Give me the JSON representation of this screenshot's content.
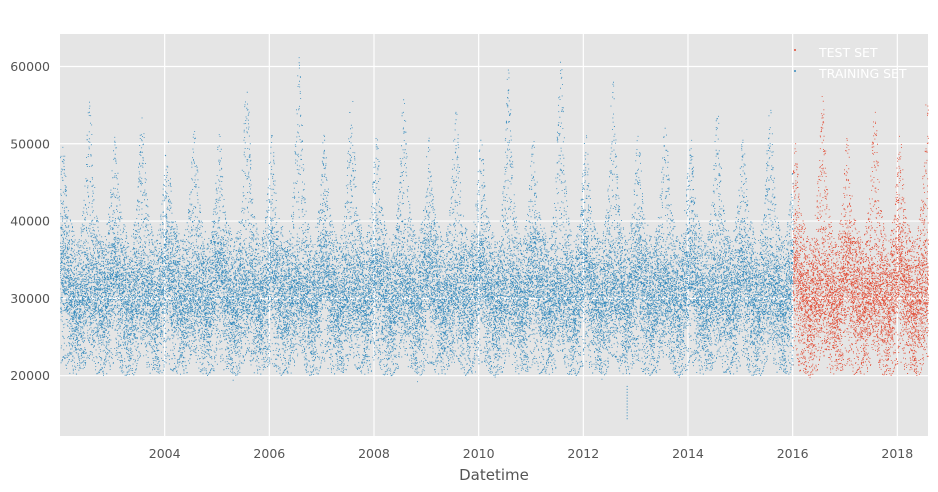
{
  "chart_data": {
    "type": "scatter",
    "title": "",
    "xlabel": "Datetime",
    "ylabel": "",
    "x_range": [
      "2002-01-01",
      "2018-08-03"
    ],
    "ylim": [
      12200,
      64200
    ],
    "x_ticks": [
      "2004",
      "2006",
      "2008",
      "2010",
      "2012",
      "2014",
      "2016",
      "2018"
    ],
    "y_ticks": [
      "20000",
      "30000",
      "40000",
      "50000",
      "60000"
    ],
    "grid": true,
    "legend_position": "top-right",
    "series": [
      {
        "name": "TEST SET",
        "color": "#e24a33",
        "x_range": [
          "2016-01-01",
          "2018-08-03"
        ],
        "approx_y_range": [
          19500,
          56500
        ]
      },
      {
        "name": "TRAINING SET",
        "color": "#348abd",
        "x_range": [
          "2002-01-01",
          "2016-01-01"
        ],
        "approx_y_range": [
          14500,
          62000
        ]
      }
    ],
    "yearly_summer_peaks": [
      {
        "year": "2002",
        "value": 56000
      },
      {
        "year": "2003",
        "value": 53800
      },
      {
        "year": "2004",
        "value": 52000
      },
      {
        "year": "2005",
        "value": 59200
      },
      {
        "year": "2006",
        "value": 62000
      },
      {
        "year": "2007",
        "value": 57500
      },
      {
        "year": "2008",
        "value": 56000
      },
      {
        "year": "2009",
        "value": 54500
      },
      {
        "year": "2010",
        "value": 60000
      },
      {
        "year": "2011",
        "value": 61500
      },
      {
        "year": "2012",
        "value": 59000
      },
      {
        "year": "2013",
        "value": 53000
      },
      {
        "year": "2014",
        "value": 55000
      },
      {
        "year": "2015",
        "value": 55000
      },
      {
        "year": "2016",
        "value": 56500
      },
      {
        "year": "2017",
        "value": 55000
      },
      {
        "year": "2018",
        "value": 56500
      }
    ],
    "outlier": {
      "date": "2012-10-30",
      "value": 14500
    }
  }
}
